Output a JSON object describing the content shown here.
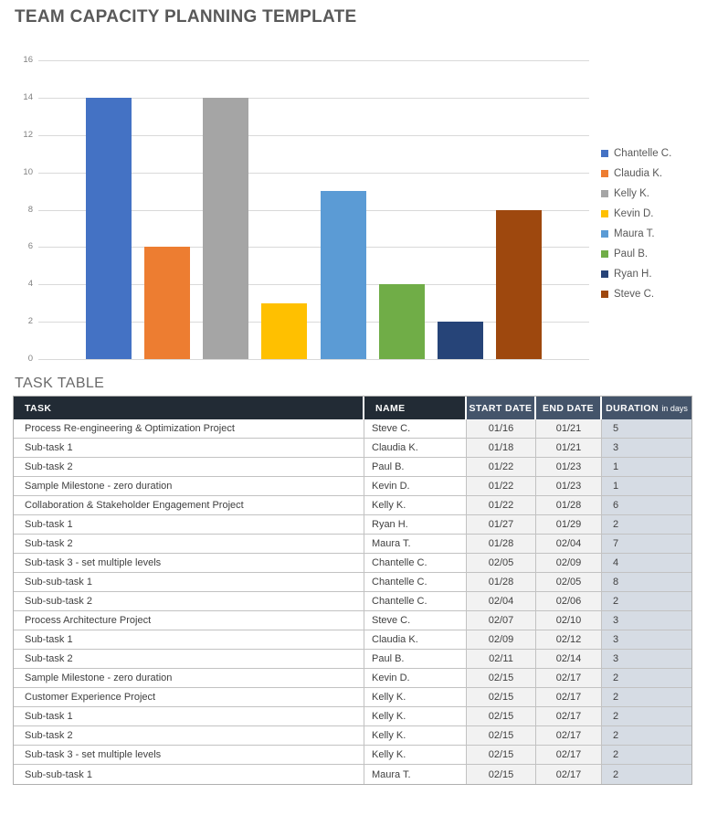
{
  "page_title": "TEAM CAPACITY PLANNING TEMPLATE",
  "chart_data": {
    "type": "bar",
    "title": "",
    "categories": [
      "Chantelle C.",
      "Claudia K.",
      "Kelly K.",
      "Kevin D.",
      "Maura T.",
      "Paul B.",
      "Ryan H.",
      "Steve C."
    ],
    "values": [
      14,
      6,
      14,
      3,
      9,
      4,
      2,
      8
    ],
    "colors": [
      "#4472C4",
      "#ED7D31",
      "#A5A5A5",
      "#FFC000",
      "#5B9BD5",
      "#70AD47",
      "#264478",
      "#9E480E"
    ],
    "xlabel": "",
    "ylabel": "",
    "ylim": [
      0,
      16
    ],
    "ytick_step": 2,
    "grid": true,
    "legend_position": "right"
  },
  "table": {
    "heading": "TASK TABLE",
    "columns": [
      "TASK",
      "NAME",
      "START DATE",
      "END DATE",
      "DURATION"
    ],
    "duration_suffix": "in days",
    "rows": [
      {
        "task": "Process Re-engineering & Optimization Project",
        "name": "Steve C.",
        "start": "01/16",
        "end": "01/21",
        "duration": "5"
      },
      {
        "task": "Sub-task 1",
        "name": "Claudia K.",
        "start": "01/18",
        "end": "01/21",
        "duration": "3"
      },
      {
        "task": "Sub-task 2",
        "name": "Paul B.",
        "start": "01/22",
        "end": "01/23",
        "duration": "1"
      },
      {
        "task": "Sample Milestone - zero duration",
        "name": "Kevin D.",
        "start": "01/22",
        "end": "01/23",
        "duration": "1"
      },
      {
        "task": "Collaboration & Stakeholder Engagement Project",
        "name": "Kelly K.",
        "start": "01/22",
        "end": "01/28",
        "duration": "6"
      },
      {
        "task": "Sub-task 1",
        "name": "Ryan H.",
        "start": "01/27",
        "end": "01/29",
        "duration": "2"
      },
      {
        "task": "Sub-task 2",
        "name": "Maura T.",
        "start": "01/28",
        "end": "02/04",
        "duration": "7"
      },
      {
        "task": "Sub-task 3 - set multiple levels",
        "name": "Chantelle C.",
        "start": "02/05",
        "end": "02/09",
        "duration": "4"
      },
      {
        "task": "Sub-sub-task 1",
        "name": "Chantelle C.",
        "start": "01/28",
        "end": "02/05",
        "duration": "8"
      },
      {
        "task": "Sub-sub-task 2",
        "name": "Chantelle C.",
        "start": "02/04",
        "end": "02/06",
        "duration": "2"
      },
      {
        "task": "Process Architecture Project",
        "name": "Steve C.",
        "start": "02/07",
        "end": "02/10",
        "duration": "3"
      },
      {
        "task": "Sub-task 1",
        "name": "Claudia K.",
        "start": "02/09",
        "end": "02/12",
        "duration": "3"
      },
      {
        "task": "Sub-task 2",
        "name": "Paul B.",
        "start": "02/11",
        "end": "02/14",
        "duration": "3"
      },
      {
        "task": "Sample Milestone - zero duration",
        "name": "Kevin D.",
        "start": "02/15",
        "end": "02/17",
        "duration": "2"
      },
      {
        "task": "Customer Experience Project",
        "name": "Kelly K.",
        "start": "02/15",
        "end": "02/17",
        "duration": "2"
      },
      {
        "task": "Sub-task 1",
        "name": "Kelly K.",
        "start": "02/15",
        "end": "02/17",
        "duration": "2"
      },
      {
        "task": "Sub-task 2",
        "name": "Kelly K.",
        "start": "02/15",
        "end": "02/17",
        "duration": "2"
      },
      {
        "task": "Sub-task 3 - set multiple levels",
        "name": "Kelly K.",
        "start": "02/15",
        "end": "02/17",
        "duration": "2"
      },
      {
        "task": "Sub-sub-task 1",
        "name": "Maura T.",
        "start": "02/15",
        "end": "02/17",
        "duration": "2"
      }
    ]
  },
  "colors": {
    "title_text": "#595959",
    "heading_text": "#6A6A6A",
    "header_dark_bg": "#222B35",
    "header_slate_bg": "#44546A",
    "date_cell_bg": "#F2F2F2",
    "duration_cell_bg": "#D6DCE4",
    "grid_line": "#D9D9D9",
    "axis_label": "#808080",
    "legend_text": "#595959"
  }
}
